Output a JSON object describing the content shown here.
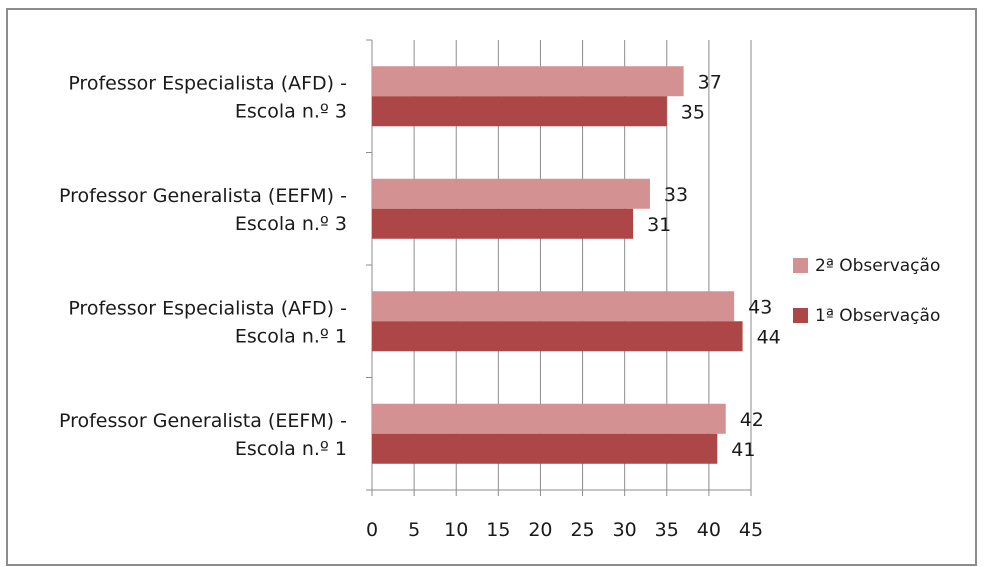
{
  "chart_data": {
    "type": "bar",
    "orientation": "horizontal",
    "categories": [
      [
        "Professor Especialista (AFD) -",
        "Escola n.º 3"
      ],
      [
        "Professor Generalista (EEFM) -",
        "Escola n.º 3"
      ],
      [
        "Professor Especialista (AFD) -",
        "Escola n.º 1"
      ],
      [
        "Professor Generalista (EEFM) -",
        "Escola n.º 1"
      ]
    ],
    "series": [
      {
        "name": "2ª Observação",
        "color": "#d49191",
        "values": [
          37,
          33,
          43,
          42
        ]
      },
      {
        "name": "1ª Observação",
        "color": "#ad4646",
        "values": [
          35,
          31,
          44,
          41
        ]
      }
    ],
    "xlim": [
      0,
      45
    ],
    "xticks": [
      0,
      5,
      10,
      15,
      20,
      25,
      30,
      35,
      40,
      45
    ],
    "grid": true,
    "legend_position": "right",
    "data_labels": true
  }
}
